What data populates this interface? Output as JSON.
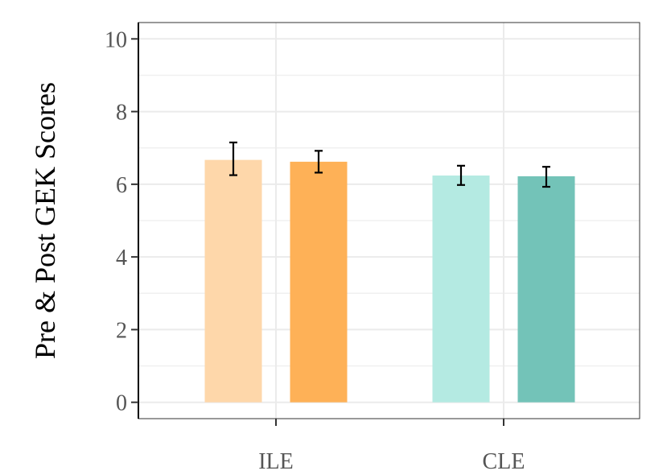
{
  "chart_data": {
    "type": "bar",
    "title": "",
    "xlabel": "",
    "ylabel": "Pre & Post GEK Scores",
    "categories": [
      "ILE",
      "CLE"
    ],
    "ylim": [
      -0.45,
      10.45
    ],
    "yticks": [
      0,
      2,
      4,
      6,
      8,
      10
    ],
    "grid": true,
    "legend": "none",
    "bars": [
      {
        "category": "ILE",
        "value": 6.67,
        "err_low": 6.25,
        "err_high": 7.15,
        "color": "#FED7AA"
      },
      {
        "category": "ILE",
        "value": 6.62,
        "err_low": 6.32,
        "err_high": 6.92,
        "color": "#FEB157"
      },
      {
        "category": "CLE",
        "value": 6.24,
        "err_low": 5.98,
        "err_high": 6.51,
        "color": "#B4EAE2"
      },
      {
        "category": "CLE",
        "value": 6.22,
        "err_low": 5.93,
        "err_high": 6.48,
        "color": "#73C3B8"
      }
    ]
  }
}
